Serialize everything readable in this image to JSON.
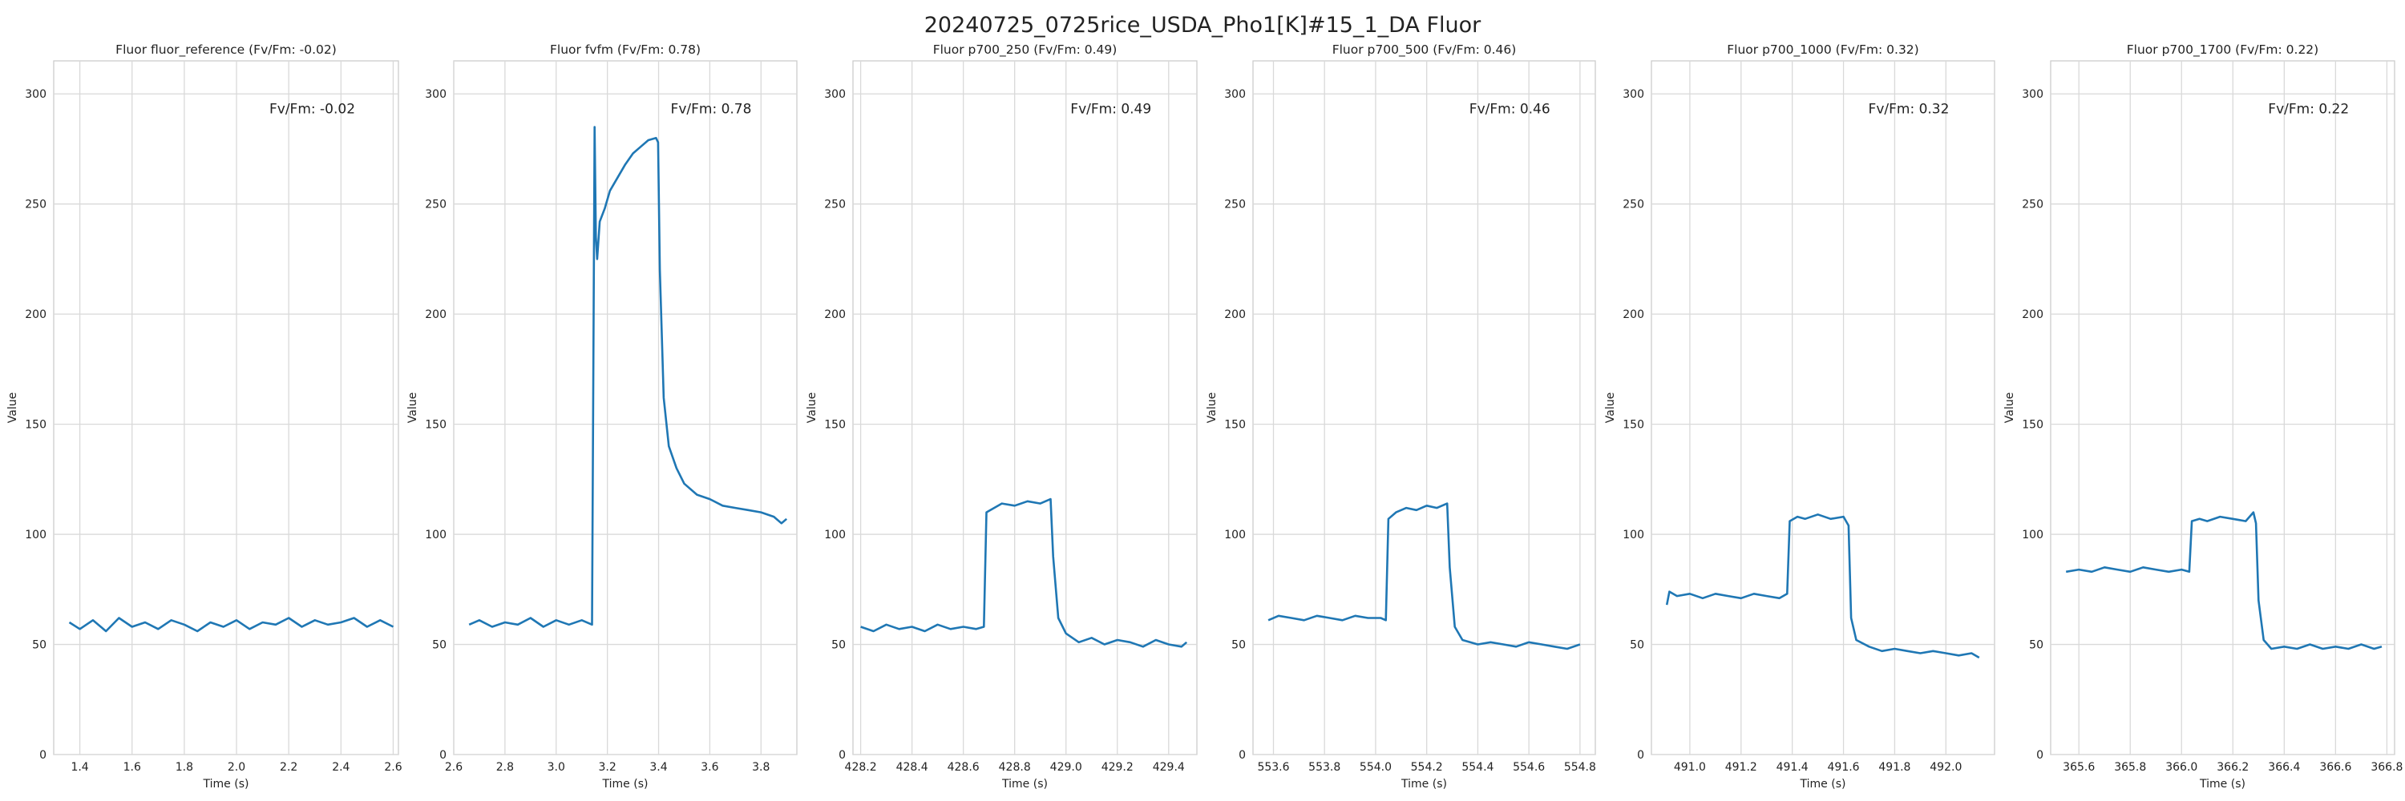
{
  "figure": {
    "title": "20240725_0725rice_USDA_Pho1[K]#15_1_DA Fluor",
    "line_color": "#1f77b4"
  },
  "chart_data": [
    {
      "type": "line",
      "title": "Fluor fluor_reference (Fv/Fm: -0.02)",
      "annotation": "Fv/Fm: -0.02",
      "xlabel": "Time (s)",
      "ylabel": "Value",
      "xlim": [
        1.3,
        2.62
      ],
      "ylim": [
        0,
        315
      ],
      "xticks": [
        1.4,
        1.6,
        1.8,
        2.0,
        2.2,
        2.4,
        2.6
      ],
      "xtick_labels": [
        "1.4",
        "1.6",
        "1.8",
        "2.0",
        "2.2",
        "2.4",
        "2.6"
      ],
      "yticks": [
        0,
        50,
        100,
        150,
        200,
        250,
        300
      ],
      "ytick_labels": [
        "0",
        "50",
        "100",
        "150",
        "200",
        "250",
        "300"
      ],
      "grid": true,
      "series": [
        {
          "x": [
            1.36,
            1.4,
            1.45,
            1.5,
            1.55,
            1.6,
            1.65,
            1.7,
            1.75,
            1.8,
            1.85,
            1.9,
            1.95,
            2.0,
            2.05,
            2.1,
            2.15,
            2.2,
            2.25,
            2.3,
            2.35,
            2.4,
            2.45,
            2.5,
            2.55,
            2.6
          ],
          "y": [
            60,
            57,
            61,
            56,
            62,
            58,
            60,
            57,
            61,
            59,
            56,
            60,
            58,
            61,
            57,
            60,
            59,
            62,
            58,
            61,
            59,
            60,
            62,
            58,
            61,
            58
          ]
        }
      ]
    },
    {
      "type": "line",
      "title": "Fluor fvfm (Fv/Fm: 0.78)",
      "annotation": "Fv/Fm: 0.78",
      "xlabel": "Time (s)",
      "ylabel": "Value",
      "xlim": [
        2.6,
        3.94
      ],
      "ylim": [
        0,
        315
      ],
      "xticks": [
        2.6,
        2.8,
        3.0,
        3.2,
        3.4,
        3.6,
        3.8
      ],
      "xtick_labels": [
        "2.6",
        "2.8",
        "3.0",
        "3.2",
        "3.4",
        "3.6",
        "3.8"
      ],
      "yticks": [
        0,
        50,
        100,
        150,
        200,
        250,
        300
      ],
      "ytick_labels": [
        "0",
        "50",
        "100",
        "150",
        "200",
        "250",
        "300"
      ],
      "grid": true,
      "series": [
        {
          "x": [
            2.66,
            2.7,
            2.75,
            2.8,
            2.85,
            2.9,
            2.95,
            3.0,
            3.05,
            3.1,
            3.14,
            3.15,
            3.155,
            3.16,
            3.17,
            3.19,
            3.21,
            3.24,
            3.27,
            3.3,
            3.33,
            3.36,
            3.39,
            3.398,
            3.405,
            3.42,
            3.44,
            3.47,
            3.5,
            3.55,
            3.6,
            3.65,
            3.7,
            3.75,
            3.8,
            3.85,
            3.88,
            3.9
          ],
          "y": [
            59,
            61,
            58,
            60,
            59,
            62,
            58,
            61,
            59,
            61,
            59,
            285,
            235,
            225,
            242,
            248,
            256,
            262,
            268,
            273,
            276,
            279,
            280,
            278,
            220,
            162,
            140,
            130,
            123,
            118,
            116,
            113,
            112,
            111,
            110,
            108,
            105,
            107
          ]
        }
      ]
    },
    {
      "type": "line",
      "title": "Fluor p700_250 (Fv/Fm: 0.49)",
      "annotation": "Fv/Fm: 0.49",
      "xlabel": "Time (s)",
      "ylabel": "Value",
      "xlim": [
        428.17,
        429.51
      ],
      "ylim": [
        0,
        315
      ],
      "xticks": [
        428.2,
        428.4,
        428.6,
        428.8,
        429.0,
        429.2,
        429.4
      ],
      "xtick_labels": [
        "428.2",
        "428.4",
        "428.6",
        "428.8",
        "429.0",
        "429.2",
        "429.4"
      ],
      "yticks": [
        0,
        50,
        100,
        150,
        200,
        250,
        300
      ],
      "ytick_labels": [
        "0",
        "50",
        "100",
        "150",
        "200",
        "250",
        "300"
      ],
      "grid": true,
      "series": [
        {
          "x": [
            428.2,
            428.25,
            428.3,
            428.35,
            428.4,
            428.45,
            428.5,
            428.55,
            428.6,
            428.65,
            428.68,
            428.69,
            428.72,
            428.75,
            428.8,
            428.85,
            428.9,
            428.94,
            428.95,
            428.97,
            429.0,
            429.05,
            429.1,
            429.15,
            429.2,
            429.25,
            429.3,
            429.35,
            429.4,
            429.45,
            429.47
          ],
          "y": [
            58,
            56,
            59,
            57,
            58,
            56,
            59,
            57,
            58,
            57,
            58,
            110,
            112,
            114,
            113,
            115,
            114,
            116,
            90,
            62,
            55,
            51,
            53,
            50,
            52,
            51,
            49,
            52,
            50,
            49,
            51
          ]
        }
      ]
    },
    {
      "type": "line",
      "title": "Fluor p700_500 (Fv/Fm: 0.46)",
      "annotation": "Fv/Fm: 0.46",
      "xlabel": "Time (s)",
      "ylabel": "Value",
      "xlim": [
        553.52,
        554.86
      ],
      "ylim": [
        0,
        315
      ],
      "xticks": [
        553.6,
        553.8,
        554.0,
        554.2,
        554.4,
        554.6,
        554.8
      ],
      "xtick_labels": [
        "553.6",
        "553.8",
        "554.0",
        "554.2",
        "554.4",
        "554.6",
        "554.8"
      ],
      "yticks": [
        0,
        50,
        100,
        150,
        200,
        250,
        300
      ],
      "ytick_labels": [
        "0",
        "50",
        "100",
        "150",
        "200",
        "250",
        "300"
      ],
      "grid": true,
      "series": [
        {
          "x": [
            553.58,
            553.62,
            553.67,
            553.72,
            553.77,
            553.82,
            553.87,
            553.92,
            553.97,
            554.02,
            554.04,
            554.05,
            554.08,
            554.12,
            554.16,
            554.2,
            554.24,
            554.28,
            554.29,
            554.31,
            554.34,
            554.4,
            554.45,
            554.5,
            554.55,
            554.6,
            554.65,
            554.7,
            554.75,
            554.8
          ],
          "y": [
            61,
            63,
            62,
            61,
            63,
            62,
            61,
            63,
            62,
            62,
            61,
            107,
            110,
            112,
            111,
            113,
            112,
            114,
            85,
            58,
            52,
            50,
            51,
            50,
            49,
            51,
            50,
            49,
            48,
            50
          ]
        }
      ]
    },
    {
      "type": "line",
      "title": "Fluor p700_1000 (Fv/Fm: 0.32)",
      "annotation": "Fv/Fm: 0.32",
      "xlabel": "Time (s)",
      "ylabel": "Value",
      "xlim": [
        490.85,
        492.19
      ],
      "ylim": [
        0,
        315
      ],
      "xticks": [
        491.0,
        491.2,
        491.4,
        491.6,
        491.8,
        492.0
      ],
      "xtick_labels": [
        "491.0",
        "491.2",
        "491.4",
        "491.6",
        "491.8",
        "492.0"
      ],
      "yticks": [
        0,
        50,
        100,
        150,
        200,
        250,
        300
      ],
      "ytick_labels": [
        "0",
        "50",
        "100",
        "150",
        "200",
        "250",
        "300"
      ],
      "grid": true,
      "series": [
        {
          "x": [
            490.91,
            490.92,
            490.95,
            491.0,
            491.05,
            491.1,
            491.15,
            491.2,
            491.25,
            491.3,
            491.35,
            491.38,
            491.39,
            491.42,
            491.45,
            491.5,
            491.55,
            491.6,
            491.62,
            491.63,
            491.65,
            491.7,
            491.75,
            491.8,
            491.85,
            491.9,
            491.95,
            492.0,
            492.05,
            492.1,
            492.13
          ],
          "y": [
            68,
            74,
            72,
            73,
            71,
            73,
            72,
            71,
            73,
            72,
            71,
            73,
            106,
            108,
            107,
            109,
            107,
            108,
            104,
            62,
            52,
            49,
            47,
            48,
            47,
            46,
            47,
            46,
            45,
            46,
            44
          ]
        }
      ]
    },
    {
      "type": "line",
      "title": "Fluor p700_1700 (Fv/Fm: 0.22)",
      "annotation": "Fv/Fm: 0.22",
      "xlabel": "Time (s)",
      "ylabel": "Value",
      "xlim": [
        365.49,
        366.83
      ],
      "ylim": [
        0,
        315
      ],
      "xticks": [
        365.6,
        365.8,
        366.0,
        366.2,
        366.4,
        366.6,
        366.8
      ],
      "xtick_labels": [
        "365.6",
        "365.8",
        "366.0",
        "366.2",
        "366.4",
        "366.6",
        "366.8"
      ],
      "yticks": [
        0,
        50,
        100,
        150,
        200,
        250,
        300
      ],
      "ytick_labels": [
        "0",
        "50",
        "100",
        "150",
        "200",
        "250",
        "300"
      ],
      "grid": true,
      "series": [
        {
          "x": [
            365.55,
            365.6,
            365.65,
            365.7,
            365.75,
            365.8,
            365.85,
            365.9,
            365.95,
            366.0,
            366.03,
            366.04,
            366.07,
            366.1,
            366.15,
            366.2,
            366.25,
            366.28,
            366.29,
            366.3,
            366.32,
            366.35,
            366.4,
            366.45,
            366.5,
            366.55,
            366.6,
            366.65,
            366.7,
            366.75,
            366.78
          ],
          "y": [
            83,
            84,
            83,
            85,
            84,
            83,
            85,
            84,
            83,
            84,
            83,
            106,
            107,
            106,
            108,
            107,
            106,
            110,
            105,
            70,
            52,
            48,
            49,
            48,
            50,
            48,
            49,
            48,
            50,
            48,
            49
          ]
        }
      ]
    }
  ]
}
